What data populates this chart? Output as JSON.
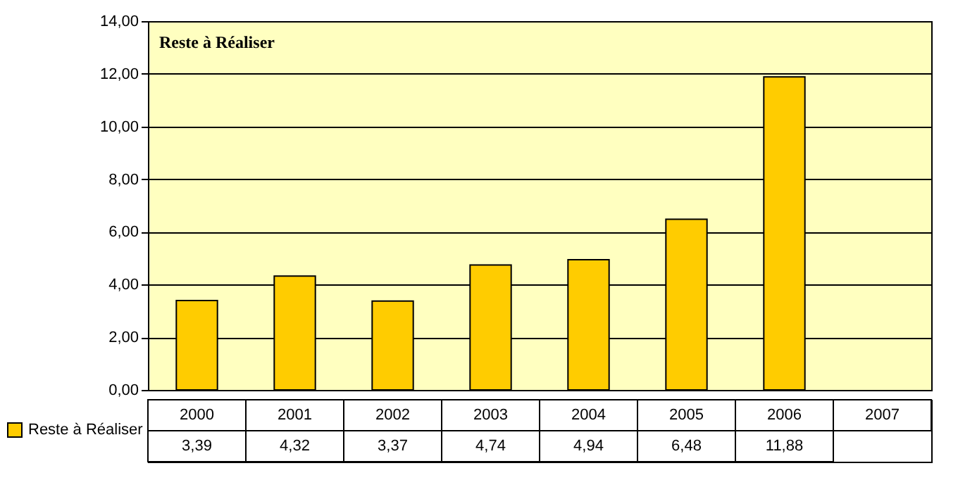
{
  "chart_data": {
    "type": "bar",
    "title": "Reste à Réaliser",
    "categories": [
      "2000",
      "2001",
      "2002",
      "2003",
      "2004",
      "2005",
      "2006",
      "2007"
    ],
    "series": [
      {
        "name": "Reste à Réaliser",
        "color": "#ffcc00",
        "values": [
          3.39,
          4.32,
          3.37,
          4.74,
          4.94,
          6.48,
          11.88,
          null
        ],
        "value_labels": [
          "3,39",
          "4,32",
          "3,37",
          "4,74",
          "4,94",
          "6,48",
          "11,88",
          null
        ]
      }
    ],
    "ylim": [
      0,
      14
    ],
    "yticks": [
      {
        "value": 0,
        "label": "0,00"
      },
      {
        "value": 2,
        "label": "2,00"
      },
      {
        "value": 4,
        "label": "4,00"
      },
      {
        "value": 6,
        "label": "6,00"
      },
      {
        "value": 8,
        "label": "8,00"
      },
      {
        "value": 10,
        "label": "10,00"
      },
      {
        "value": 12,
        "label": "12,00"
      },
      {
        "value": 14,
        "label": "14,00"
      }
    ],
    "grid": "y",
    "legend": "bottom left"
  }
}
